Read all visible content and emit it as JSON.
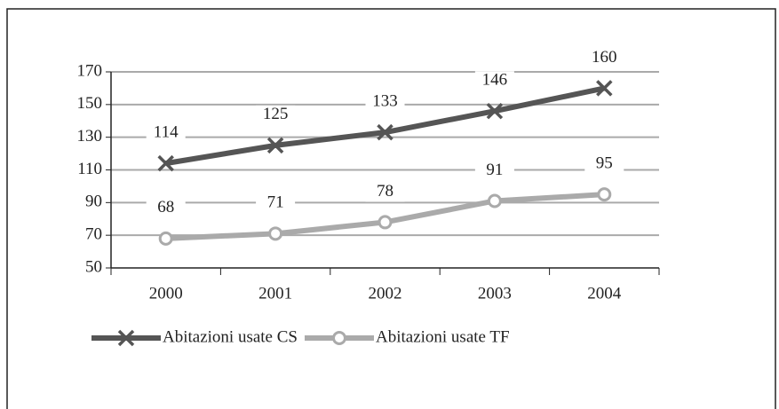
{
  "chart_data": {
    "type": "line",
    "categories": [
      "2000",
      "2001",
      "2002",
      "2003",
      "2004"
    ],
    "series": [
      {
        "name": "Abitazioni usate CS",
        "color": "#555555",
        "marker": "x",
        "values": [
          114,
          125,
          133,
          146,
          160
        ]
      },
      {
        "name": "Abitazioni usate TF",
        "color": "#aaaaaa",
        "marker": "circle",
        "values": [
          68,
          71,
          78,
          91,
          95
        ]
      }
    ],
    "ylim": [
      50,
      170
    ],
    "yticks": [
      50,
      70,
      90,
      110,
      130,
      150,
      170
    ],
    "grid": true,
    "legend": "bottom"
  }
}
